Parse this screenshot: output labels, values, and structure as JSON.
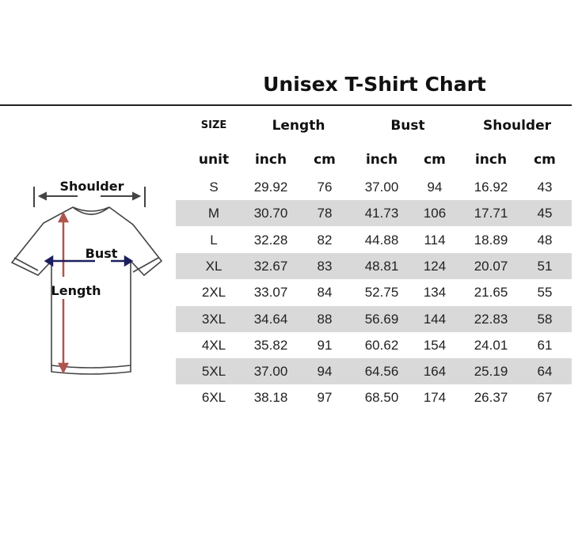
{
  "title": "Unisex T-Shirt Chart",
  "diagram": {
    "shoulder_label": "Shoulder",
    "bust_label": "Bust",
    "length_label": "Length"
  },
  "table": {
    "size_header": "SIZE",
    "group_headers": [
      "Length",
      "Bust",
      "Shoulder"
    ],
    "unit_row": [
      "unit",
      "inch",
      "cm",
      "inch",
      "cm",
      "inch",
      "cm"
    ],
    "rows": [
      [
        "S",
        "29.92",
        "76",
        "37.00",
        "94",
        "16.92",
        "43"
      ],
      [
        "M",
        "30.70",
        "78",
        "41.73",
        "106",
        "17.71",
        "45"
      ],
      [
        "L",
        "32.28",
        "82",
        "44.88",
        "114",
        "18.89",
        "48"
      ],
      [
        "XL",
        "32.67",
        "83",
        "48.81",
        "124",
        "20.07",
        "51"
      ],
      [
        "2XL",
        "33.07",
        "84",
        "52.75",
        "134",
        "21.65",
        "55"
      ],
      [
        "3XL",
        "34.64",
        "88",
        "56.69",
        "144",
        "22.83",
        "58"
      ],
      [
        "4XL",
        "35.82",
        "91",
        "60.62",
        "154",
        "24.01",
        "61"
      ],
      [
        "5XL",
        "37.00",
        "94",
        "64.56",
        "164",
        "25.19",
        "64"
      ],
      [
        "6XL",
        "38.18",
        "97",
        "68.50",
        "174",
        "26.37",
        "67"
      ]
    ]
  },
  "colors": {
    "stripe": "#d9d9d9",
    "length_arrow": "#b0554d",
    "bust_arrow": "#1c1f5e"
  }
}
